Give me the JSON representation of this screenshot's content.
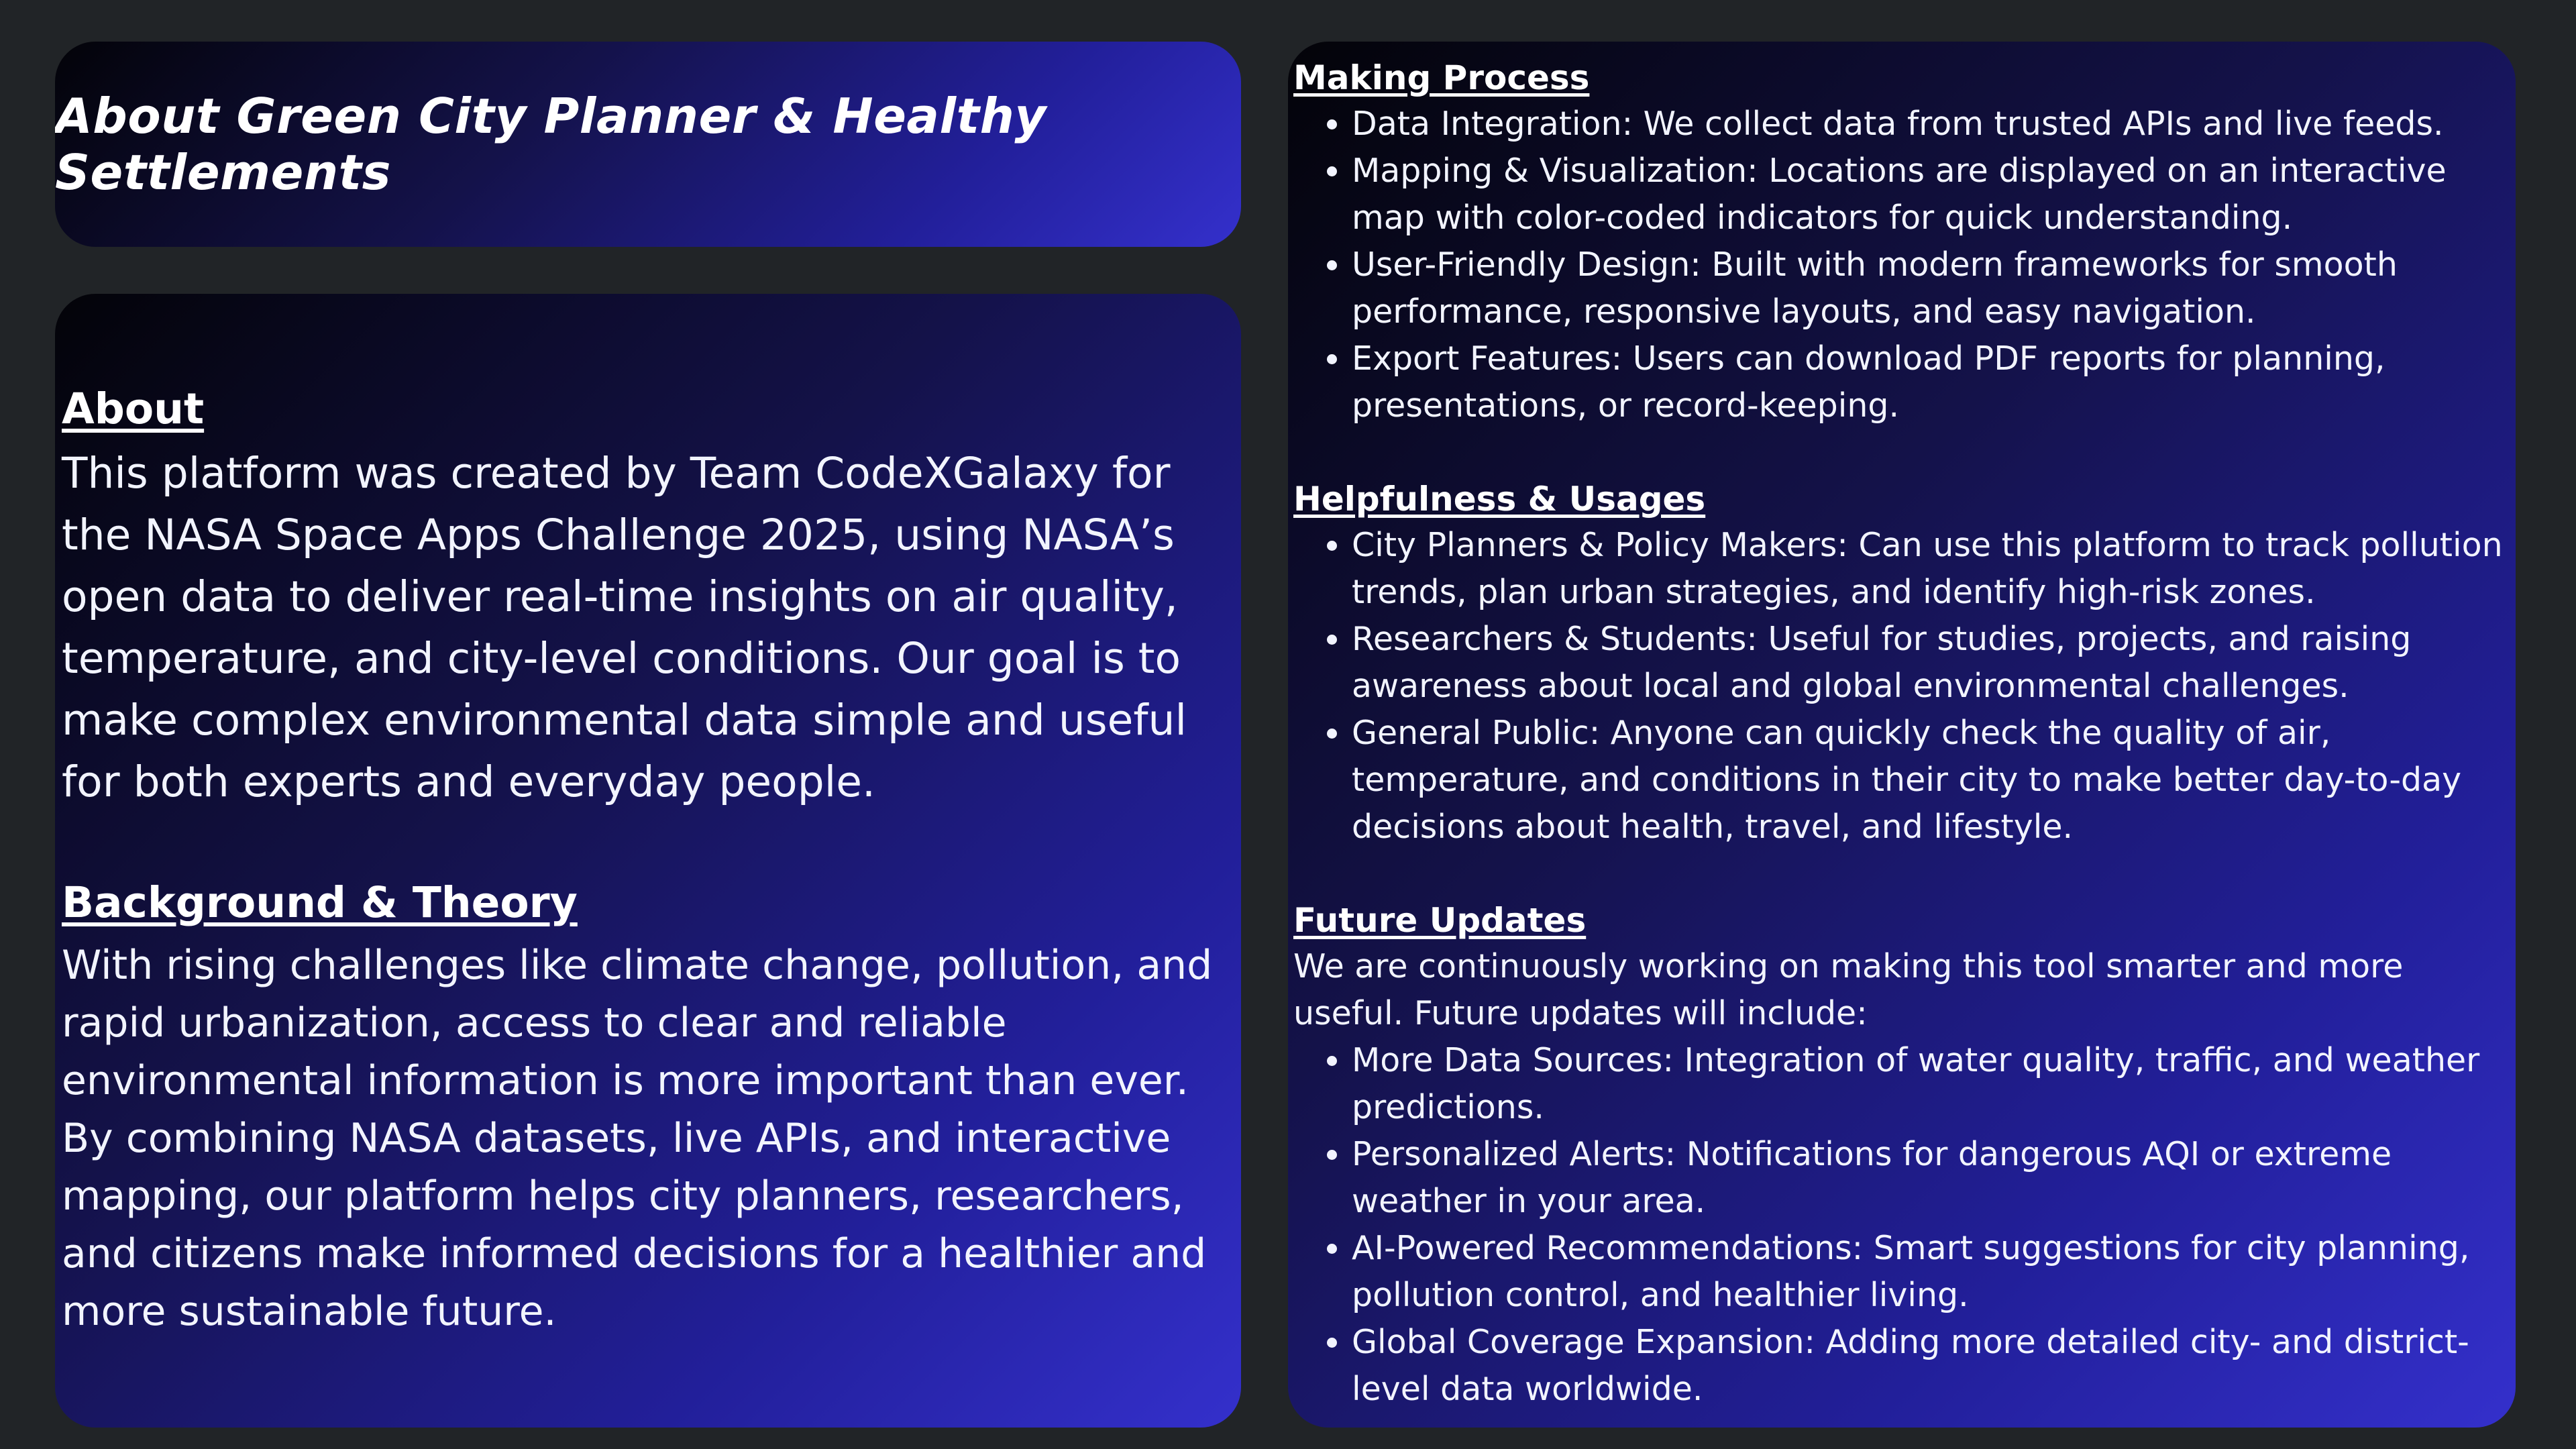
{
  "title": "About Green City Planner & Healthy Settlements",
  "about": {
    "heading": "About",
    "text": "This platform was created by Team CodeXGalaxy for the NASA Space Apps Challenge 2025, using NASA’s open data to deliver real-time insights on air quality, temperature, and city-level conditions. Our goal is to make complex environmental data simple and useful for both experts and everyday people."
  },
  "background": {
    "heading": "Background & Theory",
    "text": "With rising challenges like climate change, pollution, and rapid urbanization, access to clear and reliable environmental information is more important than ever. By combining NASA datasets, live APIs, and interactive mapping, our platform helps city planners, researchers, and citizens make informed decisions for a healthier and more sustainable future."
  },
  "making_process": {
    "heading": "Making Process",
    "items": [
      "Data Integration: We collect data from trusted APIs and live feeds.",
      "Mapping & Visualization: Locations are displayed on an interactive map with color-coded indicators for quick understanding.",
      "User-Friendly Design: Built with modern frameworks for smooth performance, responsive layouts, and easy navigation.",
      "Export Features: Users can download PDF reports for planning, presentations, or record-keeping."
    ]
  },
  "helpfulness": {
    "heading": "Helpfulness & Usages",
    "items": [
      "City Planners & Policy Makers: Can use this platform to track pollution trends, plan urban strategies, and identify high-risk zones.",
      "Researchers & Students: Useful for studies, projects, and raising awareness about local and global environmental challenges.",
      "General Public: Anyone can quickly check the quality of air, temperature, and conditions in their city to make better day-to-day decisions about health, travel, and lifestyle."
    ]
  },
  "future_updates": {
    "heading": "Future Updates",
    "intro": "We are continuously working on making this tool smarter and more useful. Future updates will include:",
    "items": [
      "More Data Sources: Integration of water quality, traffic, and weather predictions.",
      "Personalized Alerts: Notifications for dangerous AQI or extreme weather in your area.",
      "AI-Powered Recommendations: Smart suggestions for city planning, pollution control, and healthier living.",
      "Global Coverage Expansion: Adding more detailed city- and district-level data worldwide."
    ]
  }
}
